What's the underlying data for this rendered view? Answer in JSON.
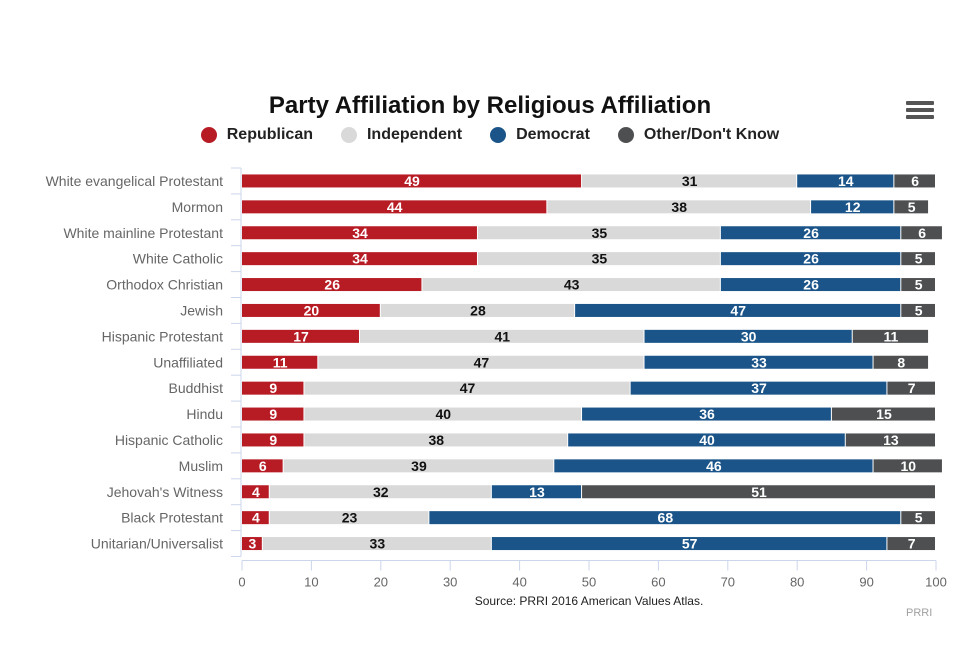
{
  "menu": {
    "icon": "hamburger-menu-icon"
  },
  "chart_data": {
    "type": "bar",
    "orientation": "horizontal",
    "stacked": true,
    "title": "Party Affiliation by Religious Affiliation",
    "xlabel": "",
    "ylabel": "",
    "xlim": [
      0,
      100
    ],
    "x_ticks": [
      "0",
      "10",
      "20",
      "30",
      "40",
      "50",
      "60",
      "70",
      "80",
      "90",
      "100"
    ],
    "grid": false,
    "legend_position": "top",
    "categories": [
      "White evangelical Protestant",
      "Mormon",
      "White mainline Protestant",
      "White Catholic",
      "Orthodox Christian",
      "Jewish",
      "Hispanic Protestant",
      "Unaffiliated",
      "Buddhist",
      "Hindu",
      "Hispanic Catholic",
      "Muslim",
      "Jehovah's Witness",
      "Black Protestant",
      "Unitarian/Universalist"
    ],
    "series": [
      {
        "name": "Republican",
        "color": "#b71c25",
        "label_color": "#ffffff",
        "values": [
          49,
          44,
          34,
          34,
          26,
          20,
          17,
          11,
          9,
          9,
          9,
          6,
          4,
          4,
          3
        ]
      },
      {
        "name": "Independent",
        "color": "#d9d9d9",
        "label_color": "#111111",
        "values": [
          31,
          38,
          35,
          35,
          43,
          28,
          41,
          47,
          47,
          40,
          38,
          39,
          32,
          23,
          33
        ]
      },
      {
        "name": "Democrat",
        "color": "#1a5488",
        "label_color": "#ffffff",
        "values": [
          14,
          12,
          26,
          26,
          26,
          47,
          30,
          33,
          37,
          36,
          40,
          46,
          13,
          68,
          57
        ]
      },
      {
        "name": "Other/Don't Know",
        "color": "#4d4f51",
        "label_color": "#ffffff",
        "values": [
          6,
          5,
          6,
          5,
          5,
          5,
          11,
          8,
          7,
          15,
          13,
          10,
          51,
          5,
          7
        ]
      }
    ],
    "source": "Source: PRRI 2016 American Values Atlas.",
    "credit": "PRRI"
  }
}
